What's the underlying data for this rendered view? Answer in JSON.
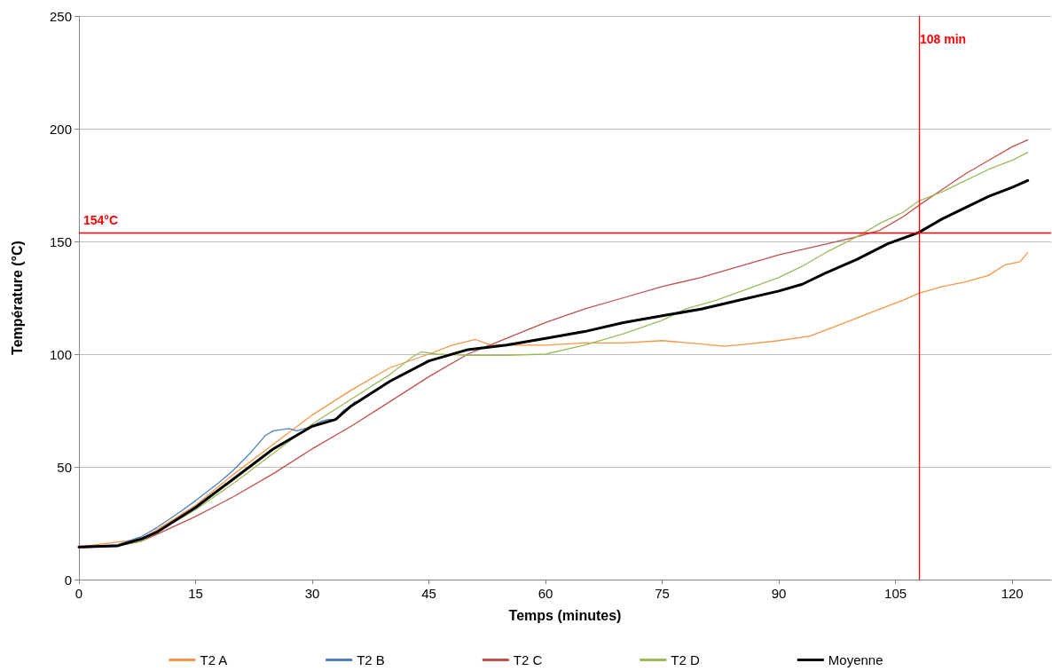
{
  "chart_data": {
    "type": "line",
    "xlabel": "Temps (minutes)",
    "ylabel": "Température (°C)",
    "xlim": [
      0,
      125
    ],
    "xticks": [
      0,
      15,
      30,
      45,
      60,
      75,
      90,
      105,
      120
    ],
    "ylim": [
      0,
      250
    ],
    "yticks": [
      0,
      50,
      100,
      150,
      200,
      250
    ],
    "grid": "y",
    "legend": "bottom",
    "marker": "none",
    "line_style": "solid",
    "series": [
      {
        "name": "T2 A",
        "color": "#f79646",
        "x": [
          0,
          8,
          10,
          15,
          20,
          25,
          30,
          35,
          40,
          45,
          48,
          51,
          53,
          56,
          60,
          65,
          70,
          75,
          80,
          83,
          86,
          90,
          94,
          97,
          100,
          103,
          106,
          108,
          111,
          114,
          117,
          119,
          121,
          122
        ],
        "values": [
          14.5,
          18,
          22,
          33,
          47,
          60,
          73,
          84,
          94,
          100,
          104,
          106.5,
          104,
          104,
          104,
          105,
          105,
          106,
          104.5,
          103.5,
          104.5,
          106,
          108,
          112,
          116,
          120,
          124,
          127,
          130,
          132,
          135,
          139.5,
          141,
          145
        ]
      },
      {
        "name": "T2 B",
        "color": "#4f81bd",
        "x": [
          0,
          5,
          8,
          10,
          13,
          15,
          18,
          20,
          22,
          24,
          25,
          26,
          27,
          28,
          30,
          31,
          32,
          33,
          34,
          35,
          35.5
        ],
        "values": [
          14.5,
          15.5,
          19,
          23,
          30,
          35,
          43,
          49,
          56,
          64,
          66,
          66.5,
          67,
          66,
          68,
          70,
          71,
          71,
          75,
          77,
          79
        ]
      },
      {
        "name": "T2 C",
        "color": "#c0504d",
        "x": [
          0,
          5,
          8,
          10,
          15,
          20,
          25,
          30,
          35,
          40,
          45,
          50,
          55,
          60,
          65,
          70,
          75,
          80,
          85,
          90,
          95,
          100,
          103,
          106,
          108,
          111,
          114,
          117,
          120,
          122
        ],
        "values": [
          14,
          15,
          17,
          20,
          28,
          37,
          47,
          58,
          68,
          79,
          90,
          100,
          107,
          114,
          120,
          125,
          130,
          134,
          139,
          144,
          148,
          152,
          155,
          161,
          166,
          173,
          180,
          186,
          192,
          195
        ]
      },
      {
        "name": "T2 D",
        "color": "#9bbb59",
        "x": [
          0,
          5,
          8,
          10,
          15,
          20,
          25,
          30,
          35,
          40,
          43,
          44,
          46,
          50,
          55,
          60,
          65,
          70,
          75,
          78,
          82,
          86,
          90,
          93,
          96,
          100,
          103,
          106,
          108,
          111,
          114,
          117,
          120,
          122
        ],
        "values": [
          14.5,
          15,
          17,
          21,
          31,
          43,
          56,
          69,
          80,
          91,
          99,
          101,
          100,
          99.5,
          99.5,
          100,
          104,
          109,
          115,
          120,
          124,
          129,
          134,
          139,
          145,
          152,
          158,
          163,
          168,
          172,
          177,
          182,
          186,
          189.5
        ]
      },
      {
        "name": "Moyenne",
        "color": "#000000",
        "x": [
          0,
          5,
          8,
          10,
          15,
          20,
          25,
          30,
          33,
          35,
          40,
          45,
          50,
          55,
          60,
          65,
          70,
          75,
          80,
          85,
          90,
          93,
          96,
          100,
          104,
          108,
          111,
          114,
          117,
          120,
          122
        ],
        "values": [
          14.5,
          15,
          18,
          21,
          32,
          45,
          58,
          68,
          71,
          77,
          88,
          97,
          102,
          104,
          107,
          110,
          114,
          117,
          120,
          124,
          128,
          131,
          136,
          142,
          149,
          154,
          160,
          165,
          170,
          174,
          177
        ]
      }
    ],
    "ref_lines": [
      {
        "axis": "x",
        "value": 108,
        "label": "108 min",
        "color": "#ff0000"
      },
      {
        "axis": "y",
        "value": 154,
        "label": "154°C",
        "color": "#ff0000"
      }
    ]
  }
}
